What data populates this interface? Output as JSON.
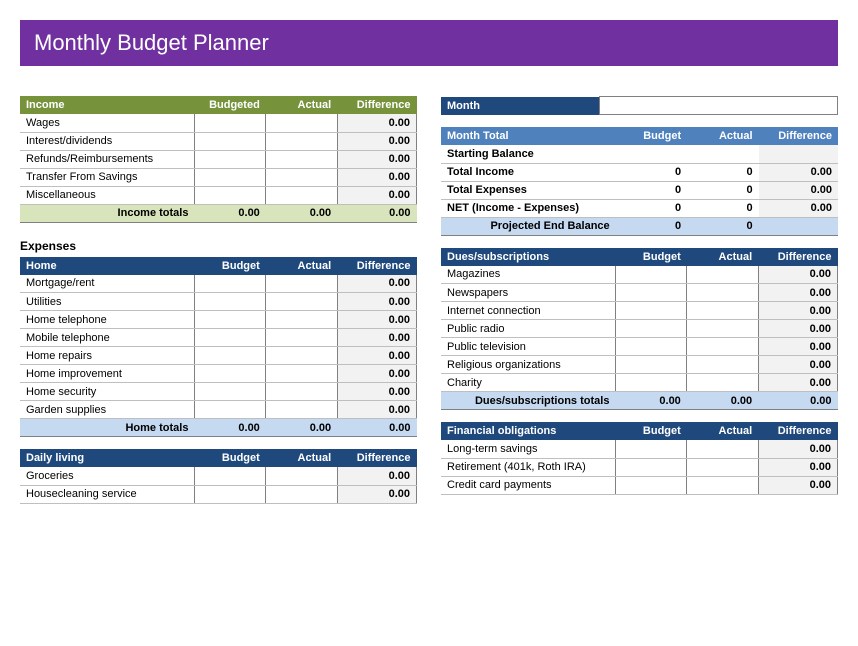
{
  "title": "Monthly Budget Planner",
  "colors": {
    "banner": "#7030a0",
    "green_header": "#76933c",
    "green_total": "#d8e4bc",
    "blue_header": "#1f497d",
    "steel_header": "#4f81bd",
    "blue_total": "#c5d9f1",
    "diff_bg": "#f2f2f2"
  },
  "labels": {
    "budgeted": "Budgeted",
    "budget": "Budget",
    "actual": "Actual",
    "difference": "Difference",
    "expenses": "Expenses"
  },
  "income": {
    "header": "Income",
    "rows": [
      {
        "label": "Wages",
        "diff": "0.00"
      },
      {
        "label": "Interest/dividends",
        "diff": "0.00"
      },
      {
        "label": "Refunds/Reimbursements",
        "diff": "0.00"
      },
      {
        "label": "Transfer From Savings",
        "diff": "0.00"
      },
      {
        "label": "Miscellaneous",
        "diff": "0.00"
      }
    ],
    "total_label": "Income totals",
    "total_budget": "0.00",
    "total_actual": "0.00",
    "total_diff": "0.00"
  },
  "home": {
    "header": "Home",
    "rows": [
      {
        "label": "Mortgage/rent",
        "diff": "0.00"
      },
      {
        "label": "Utilities",
        "diff": "0.00"
      },
      {
        "label": "Home telephone",
        "diff": "0.00"
      },
      {
        "label": "Mobile telephone",
        "diff": "0.00"
      },
      {
        "label": "Home repairs",
        "diff": "0.00"
      },
      {
        "label": "Home improvement",
        "diff": "0.00"
      },
      {
        "label": "Home security",
        "diff": "0.00"
      },
      {
        "label": "Garden supplies",
        "diff": "0.00"
      }
    ],
    "total_label": "Home totals",
    "total_budget": "0.00",
    "total_actual": "0.00",
    "total_diff": "0.00"
  },
  "daily": {
    "header": "Daily living",
    "rows": [
      {
        "label": "Groceries",
        "diff": "0.00"
      },
      {
        "label": "Housecleaning service",
        "diff": "0.00"
      }
    ]
  },
  "month": {
    "header": "Month"
  },
  "summary": {
    "header": "Month Total",
    "rows": [
      {
        "label": "Starting Balance",
        "budget": "",
        "actual": "",
        "diff": ""
      },
      {
        "label": "Total Income",
        "budget": "0",
        "actual": "0",
        "diff": "0.00"
      },
      {
        "label": "Total Expenses",
        "budget": "0",
        "actual": "0",
        "diff": "0.00"
      },
      {
        "label": "NET (Income - Expenses)",
        "budget": "0",
        "actual": "0",
        "diff": "0.00"
      }
    ],
    "proj_label": "Projected End Balance",
    "proj_budget": "0",
    "proj_actual": "0"
  },
  "dues": {
    "header": "Dues/subscriptions",
    "rows": [
      {
        "label": "Magazines",
        "diff": "0.00"
      },
      {
        "label": "Newspapers",
        "diff": "0.00"
      },
      {
        "label": "Internet connection",
        "diff": "0.00"
      },
      {
        "label": "Public radio",
        "diff": "0.00"
      },
      {
        "label": "Public television",
        "diff": "0.00"
      },
      {
        "label": "Religious organizations",
        "diff": "0.00"
      },
      {
        "label": "Charity",
        "diff": "0.00"
      }
    ],
    "total_label": "Dues/subscriptions totals",
    "total_budget": "0.00",
    "total_actual": "0.00",
    "total_diff": "0.00"
  },
  "financial": {
    "header": "Financial obligations",
    "rows": [
      {
        "label": "Long-term savings",
        "diff": "0.00"
      },
      {
        "label": "Retirement (401k, Roth IRA)",
        "diff": "0.00"
      },
      {
        "label": "Credit card payments",
        "diff": "0.00"
      }
    ]
  }
}
